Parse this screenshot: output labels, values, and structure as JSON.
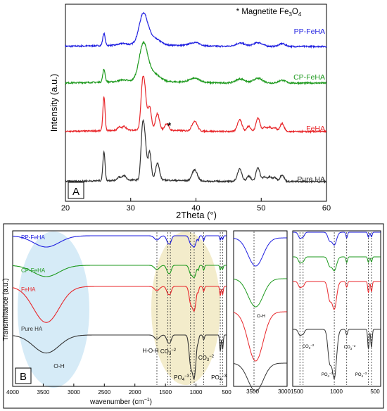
{
  "panel_a": {
    "letter": "A",
    "annotation": {
      "prefix": "* Magnetite Fe",
      "sub1": "3",
      "mid": "O",
      "sub2": "4"
    },
    "star": "*",
    "chart_data": {
      "type": "line",
      "xlabel": "2Theta (°)",
      "ylabel": "Intensity (a.u.)",
      "xlim": [
        20,
        60
      ],
      "x_ticks": [
        "20",
        "30",
        "40",
        "50",
        "60"
      ],
      "y_ticks": [],
      "grid": false,
      "legend": "labels at right end of each trace",
      "series": [
        {
          "name": "PP-FeHA",
          "color": "#1f1fe0",
          "offset": 3,
          "peaks": [
            [
              25.9,
              0.22,
              0.18
            ],
            [
              28.8,
              0.03,
              0.6
            ],
            [
              31.9,
              0.38,
              0.6
            ],
            [
              32.3,
              0.22,
              0.9
            ],
            [
              34.1,
              0.07,
              0.7
            ],
            [
              39.8,
              0.06,
              0.8
            ],
            [
              46.8,
              0.06,
              0.7
            ],
            [
              49.5,
              0.07,
              0.7
            ],
            [
              53.2,
              0.05,
              0.5
            ]
          ]
        },
        {
          "name": "CP-FeHA",
          "color": "#1e9a1e",
          "offset": 2,
          "peaks": [
            [
              25.9,
              0.22,
              0.18
            ],
            [
              28.8,
              0.03,
              0.6
            ],
            [
              31.9,
              0.44,
              0.6
            ],
            [
              32.3,
              0.25,
              0.9
            ],
            [
              34.1,
              0.08,
              0.7
            ],
            [
              39.8,
              0.07,
              0.8
            ],
            [
              46.8,
              0.07,
              0.7
            ],
            [
              49.5,
              0.08,
              0.7
            ],
            [
              53.2,
              0.05,
              0.5
            ]
          ]
        },
        {
          "name": "FeHA",
          "color": "#e8262a",
          "offset": 1,
          "peaks": [
            [
              25.9,
              0.62,
              0.16
            ],
            [
              28.2,
              0.06,
              0.25
            ],
            [
              29.0,
              0.07,
              0.3
            ],
            [
              31.8,
              0.75,
              0.26
            ],
            [
              32.2,
              0.55,
              0.26
            ],
            [
              32.9,
              0.42,
              0.26
            ],
            [
              34.1,
              0.3,
              0.3
            ],
            [
              35.5,
              0.12,
              0.3
            ],
            [
              39.8,
              0.18,
              0.4
            ],
            [
              46.7,
              0.22,
              0.35
            ],
            [
              48.1,
              0.1,
              0.3
            ],
            [
              49.5,
              0.25,
              0.3
            ],
            [
              50.5,
              0.08,
              0.3
            ],
            [
              51.3,
              0.08,
              0.3
            ],
            [
              52.1,
              0.07,
              0.3
            ],
            [
              53.2,
              0.15,
              0.3
            ]
          ]
        },
        {
          "name": "Pure HA",
          "color": "#333333",
          "offset": 0,
          "peaks": [
            [
              25.9,
              0.52,
              0.16
            ],
            [
              28.2,
              0.06,
              0.25
            ],
            [
              29.0,
              0.08,
              0.3
            ],
            [
              31.8,
              0.85,
              0.24
            ],
            [
              32.2,
              0.6,
              0.24
            ],
            [
              32.9,
              0.5,
              0.24
            ],
            [
              34.1,
              0.3,
              0.3
            ],
            [
              39.8,
              0.2,
              0.4
            ],
            [
              46.7,
              0.22,
              0.35
            ],
            [
              48.1,
              0.1,
              0.3
            ],
            [
              49.5,
              0.25,
              0.3
            ],
            [
              50.5,
              0.08,
              0.3
            ],
            [
              51.3,
              0.08,
              0.3
            ],
            [
              52.1,
              0.07,
              0.3
            ],
            [
              53.2,
              0.12,
              0.3
            ]
          ]
        }
      ]
    }
  },
  "panel_b": {
    "letter": "B",
    "chart_data": {
      "type": "line",
      "xlabel": "wavenumber (cm",
      "xlabel_sup": "−1",
      "xlabel_end": ")",
      "ylabel": "Transmittance (a.u.)",
      "xlim": [
        4000,
        500
      ],
      "x_ticks": [
        "4000",
        "3500",
        "3000",
        "2500",
        "2000",
        "1500",
        "1000",
        "500"
      ],
      "grid": false,
      "series": [
        {
          "name": "PP-FeHA",
          "color": "#1f1fe0",
          "offset": 3,
          "oh": 0.5,
          "ph": 0.6
        },
        {
          "name": "CP-FeHA",
          "color": "#1e9a1e",
          "offset": 2,
          "oh": 0.5,
          "ph": 0.65
        },
        {
          "name": "FeHA",
          "color": "#e8262a",
          "offset": 1,
          "oh": 1.6,
          "ph": 1.3
        },
        {
          "name": "Pure HA",
          "color": "#333333",
          "offset": 0,
          "oh": 0.8,
          "ph": 2.3
        }
      ],
      "dashed_markers": [
        1640,
        1460,
        1420,
        1090,
        1030,
        875,
        603,
        565
      ],
      "bands": {
        "oh": {
          "label": "O-H",
          "center": 3450
        },
        "hoh": {
          "label": "H-O-H"
        },
        "co3_a": {
          "label": "CO",
          "sub": "3",
          "sup": "−2"
        },
        "po4": {
          "label": "PO",
          "sub": "4",
          "sup": "−3"
        },
        "co3_b": {
          "label": "CO",
          "sub": "3",
          "sup": "−2"
        },
        "po4_b": {
          "label": "PO",
          "sub": "4",
          "sup": "−3"
        }
      }
    },
    "inset1": {
      "x_ticks": [
        "3500",
        "3000"
      ],
      "label": "O-H"
    },
    "inset2": {
      "x_ticks": [
        "1500",
        "1000",
        "500"
      ],
      "label_co3_a": {
        "label": "CO",
        "sub": "3",
        "sup": "−2"
      },
      "label_po4_a": {
        "label": "PO",
        "sub": "4",
        "sup": "−3"
      },
      "label_co3_b": {
        "label": "CO",
        "sub": "3",
        "sup": "−2"
      },
      "label_po4_b": {
        "label": "PO",
        "sub": "4",
        "sup": "−3"
      }
    }
  }
}
